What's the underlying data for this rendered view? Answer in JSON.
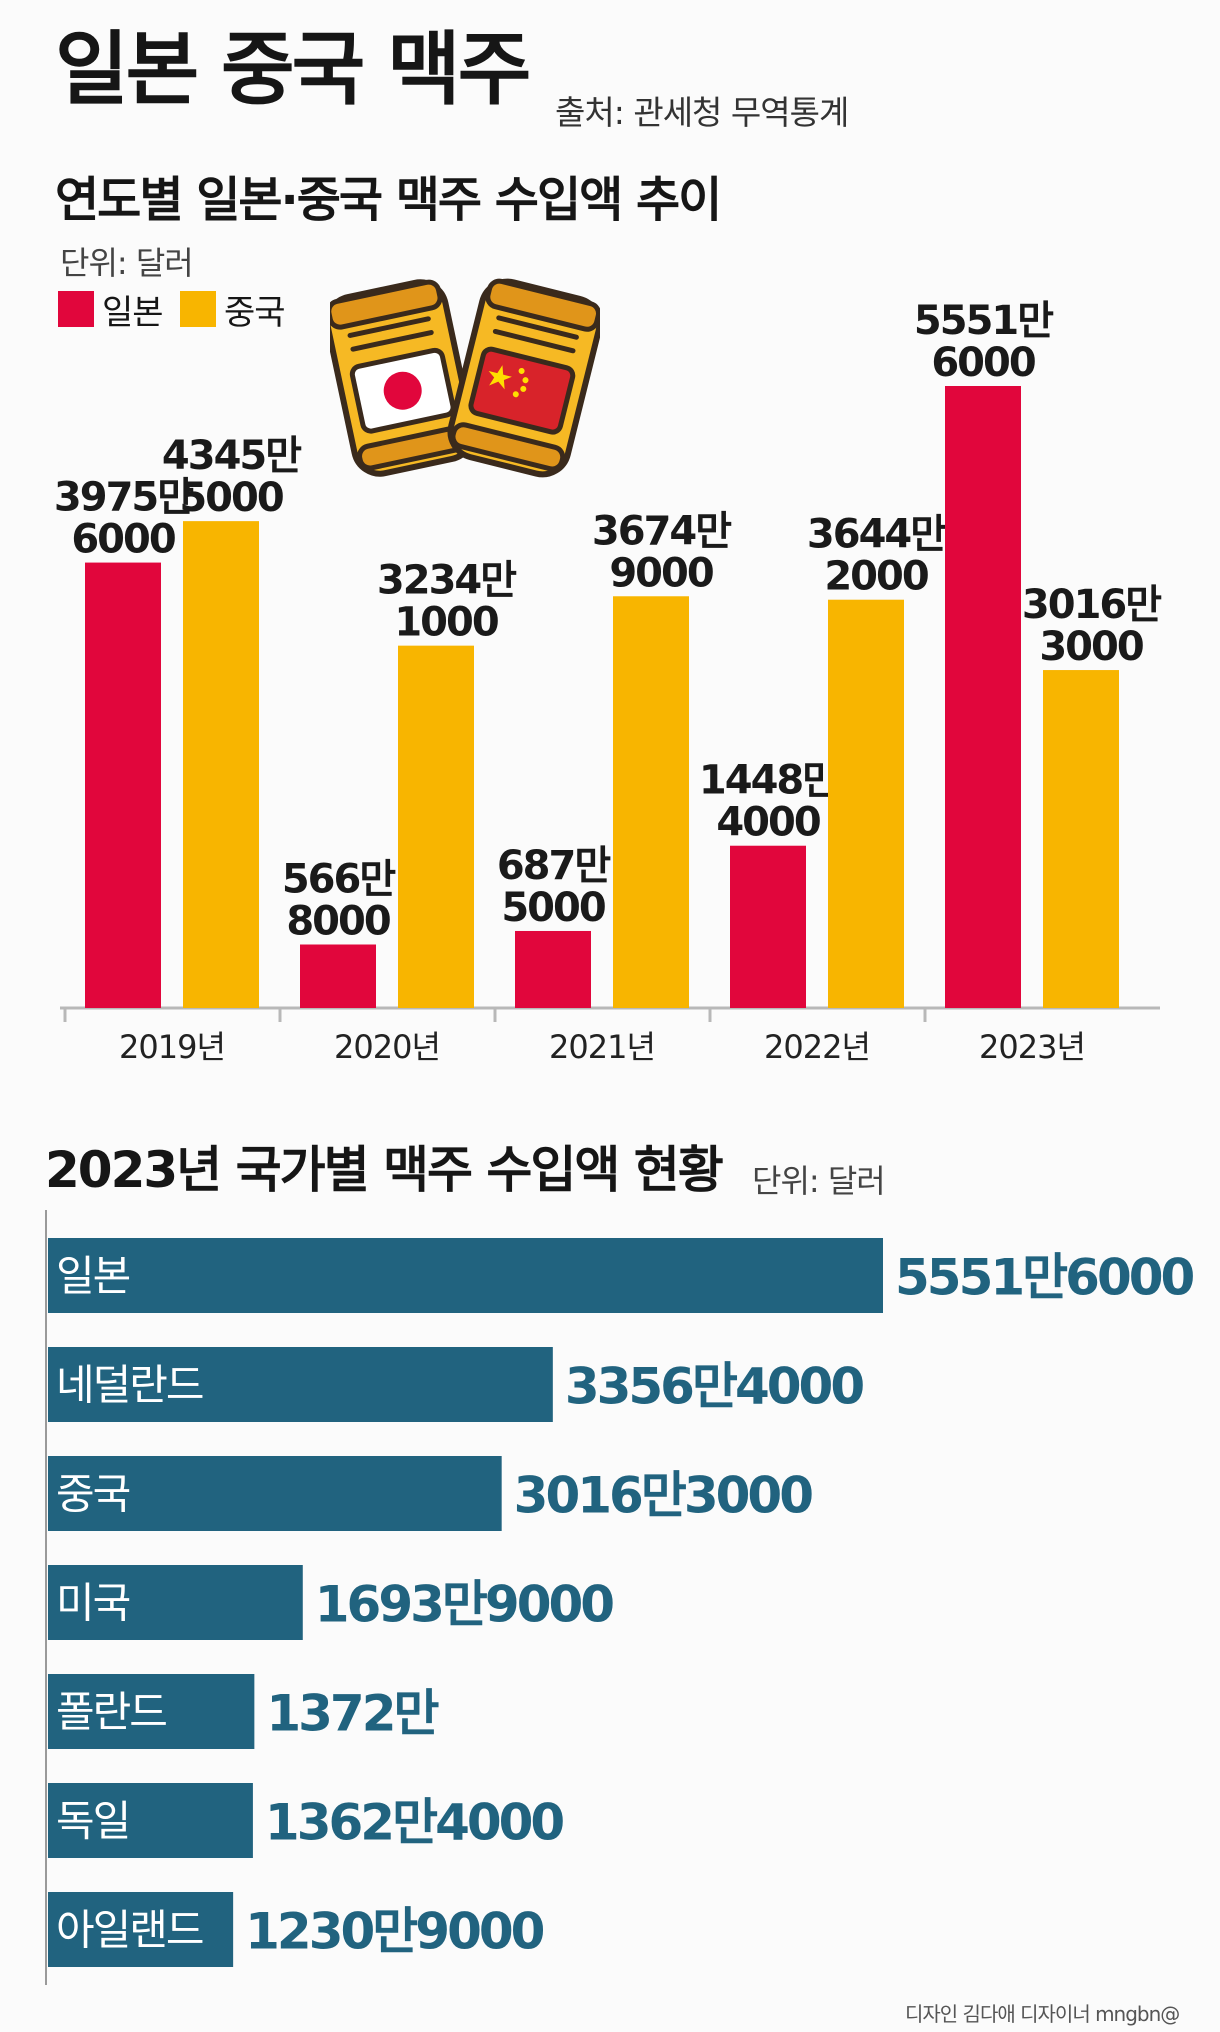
{
  "title": "일본 중국 맥주",
  "source": "출처: 관세청 무역통계",
  "section1": {
    "subtitle": "연도별 일본·중국 맥주 수입액 추이",
    "unit": "단위: 달러",
    "legend": [
      {
        "label": "일본",
        "color": "#e1063c"
      },
      {
        "label": "중국",
        "color": "#f8b500"
      }
    ]
  },
  "section2": {
    "subtitle": "2023년 국가별 맥주 수입액 현황",
    "unit": "단위: 달러"
  },
  "credit": "디자인 김다애 디자이너 mngbn@",
  "chart_data": [
    {
      "type": "bar",
      "title": "연도별 일본·중국 맥주 수입액 추이",
      "unit": "달러",
      "categories": [
        "2019년",
        "2020년",
        "2021년",
        "2022년",
        "2023년"
      ],
      "series": [
        {
          "name": "일본",
          "color": "#e1063c",
          "values": [
            39756000,
            5668000,
            6875000,
            14484000,
            55516000
          ],
          "labels": [
            [
              "3975만",
              "6000"
            ],
            [
              "566만",
              "8000"
            ],
            [
              "687만",
              "5000"
            ],
            [
              "1448만",
              "4000"
            ],
            [
              "5551만",
              "6000"
            ]
          ]
        },
        {
          "name": "중국",
          "color": "#f8b500",
          "values": [
            43455000,
            32341000,
            36749000,
            36442000,
            30163000
          ],
          "labels": [
            [
              "4345만",
              "5000"
            ],
            [
              "3234만",
              "1000"
            ],
            [
              "3674만",
              "9000"
            ],
            [
              "3644만",
              "2000"
            ],
            [
              "3016만",
              "3000"
            ]
          ]
        }
      ],
      "ylim": [
        0,
        60000000
      ],
      "grid": false
    },
    {
      "type": "bar",
      "orientation": "horizontal",
      "title": "2023년 국가별 맥주 수입액 현황",
      "unit": "달러",
      "color": "#21637f",
      "categories": [
        "일본",
        "네덜란드",
        "중국",
        "미국",
        "폴란드",
        "독일",
        "아일랜드"
      ],
      "values": [
        55516000,
        33564000,
        30163000,
        16939000,
        13720000,
        13624000,
        12309000
      ],
      "labels": [
        "5551만6000",
        "3356만4000",
        "3016만3000",
        "1693만9000",
        "1372만",
        "1362만4000",
        "1230만9000"
      ],
      "xlim": [
        0,
        55516000
      ]
    }
  ]
}
